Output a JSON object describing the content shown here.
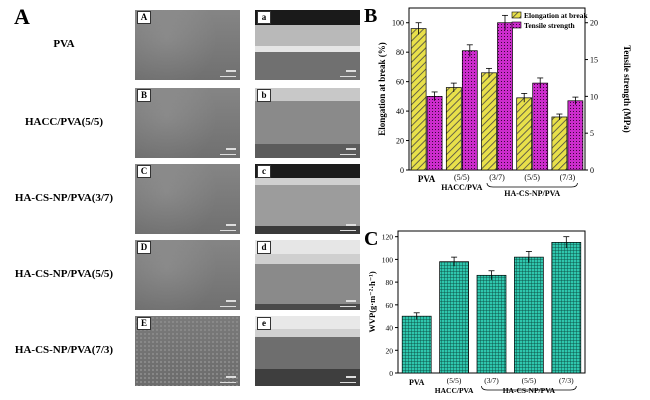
{
  "panel_a": {
    "letter": "A",
    "rows": [
      {
        "label": "PVA",
        "surface_tag": "A",
        "cross_tag": "a"
      },
      {
        "label": "HACC/PVA(5/5)",
        "surface_tag": "B",
        "cross_tag": "b"
      },
      {
        "label": "HA-CS-NP/PVA(3/7)",
        "surface_tag": "C",
        "cross_tag": "c"
      },
      {
        "label": "HA-CS-NP/PVA(5/5)",
        "surface_tag": "D",
        "cross_tag": "d"
      },
      {
        "label": "HA-CS-NP/PVA(7/3)",
        "surface_tag": "E",
        "cross_tag": "e"
      }
    ]
  },
  "colors": {
    "elongation": "#e8e04a",
    "tensile": "#cc2ccc",
    "wvp": "#2fc6ad"
  },
  "chart_data": [
    {
      "panel": "B",
      "type": "bar",
      "categories": [
        "PVA",
        "(5/5)",
        "(3/7)",
        "(5/5)",
        "(7/3)"
      ],
      "group_labels": {
        "hacc": "HACC/PVA",
        "hacs": "HA-CS-NP/PVA"
      },
      "ylabel": "Elongation at break (%)",
      "y2label": "Tensile strength (MPa)",
      "ylim": [
        0,
        110
      ],
      "y2lim": [
        0,
        22
      ],
      "yticks": [
        0,
        20,
        40,
        60,
        80,
        100
      ],
      "y2ticks": [
        0,
        5,
        10,
        15,
        20
      ],
      "legend": [
        "Elongation at break",
        "Tensile strength"
      ],
      "legend_position": "top-right",
      "series": [
        {
          "name": "Elongation at break",
          "axis": "left",
          "values": [
            96,
            56,
            66,
            49,
            36
          ],
          "errors": [
            4,
            3,
            3,
            3,
            2
          ]
        },
        {
          "name": "Tensile strength",
          "axis": "right",
          "values": [
            10,
            16.2,
            20,
            11.8,
            9.4
          ],
          "errors": [
            0.6,
            0.8,
            1.0,
            0.7,
            0.5
          ]
        }
      ]
    },
    {
      "panel": "C",
      "type": "bar",
      "categories": [
        "PVA",
        "(5/5)",
        "(3/7)",
        "(5/5)",
        "(7/3)"
      ],
      "group_labels": {
        "hacc": "HACC/PVA",
        "hacs": "HA-CS-NP/PVA"
      },
      "ylabel": "WVP(g·m⁻²·h⁻¹)",
      "ylim": [
        0,
        125
      ],
      "yticks": [
        0,
        20,
        40,
        60,
        80,
        100,
        120
      ],
      "series": [
        {
          "values": [
            50,
            98,
            86,
            102,
            115
          ],
          "errors": [
            3,
            4,
            4,
            5,
            5
          ]
        }
      ]
    }
  ]
}
